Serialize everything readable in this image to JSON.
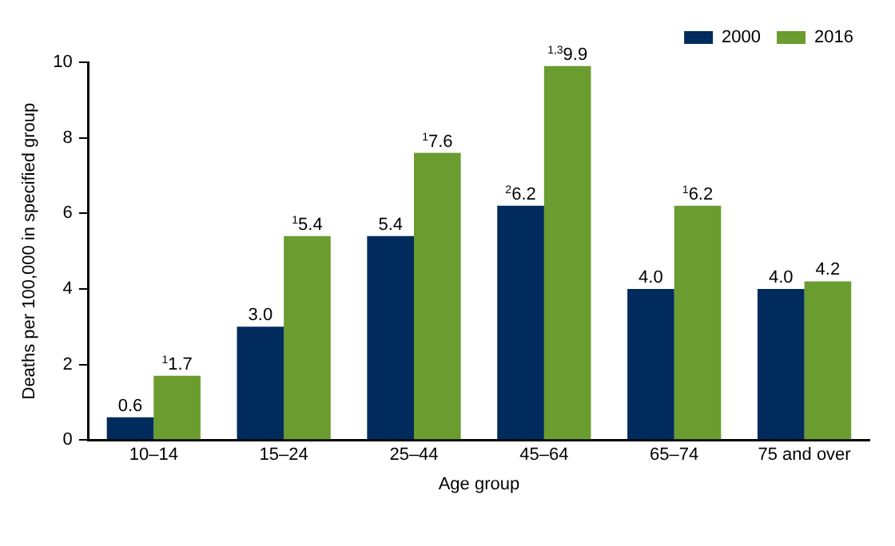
{
  "chart_data": {
    "type": "bar",
    "xlabel": "Age group",
    "ylabel": "Deaths per 100,000 in specified group",
    "categories": [
      "10–14",
      "15–24",
      "25–44",
      "45–64",
      "65–74",
      "75 and over"
    ],
    "series": [
      {
        "name": "2000",
        "color": "#002b5c",
        "values": [
          0.6,
          3.0,
          5.4,
          6.2,
          4.0,
          4.0
        ],
        "value_labels": [
          "0.6",
          "3.0",
          "5.4",
          "$^{2}$6.2",
          "4.0",
          "4.0"
        ]
      },
      {
        "name": "2016",
        "color": "#6a9c2f",
        "values": [
          1.7,
          5.4,
          7.6,
          9.9,
          6.2,
          4.2
        ],
        "value_labels": [
          "$^{1}$1.7",
          "$^{1}$5.4",
          "$^{1}$7.6",
          "$^{1,3}$9.9",
          "$^{1}$6.2",
          "4.2"
        ]
      }
    ],
    "ylim": [
      0,
      10
    ],
    "yticks": [
      0,
      2,
      4,
      6,
      8,
      10
    ],
    "grid": false,
    "legend": "top right"
  }
}
